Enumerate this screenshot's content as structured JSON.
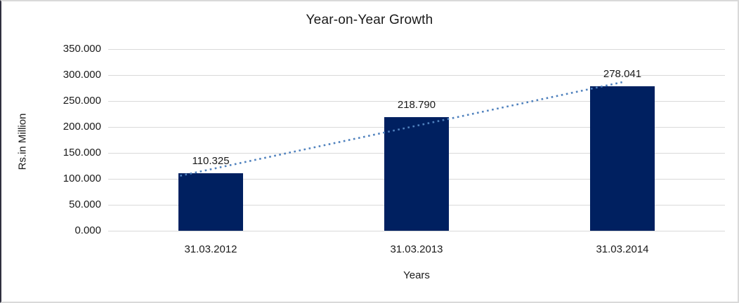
{
  "chart_data": {
    "type": "bar",
    "title": "Year-on-Year Growth",
    "categories": [
      "31.03.2012",
      "31.03.2013",
      "31.03.2014"
    ],
    "series": [
      {
        "name": "Rs.in Million",
        "values": [
          110.325,
          218.79,
          278.041
        ]
      }
    ],
    "data_labels": [
      "110.325",
      "218.790",
      "278.041"
    ],
    "xlabel": "Years",
    "ylabel": "Rs.in Million",
    "ylim": [
      0,
      350
    ],
    "ytick_step": 50,
    "ytick_labels": [
      "0.000",
      "50.000",
      "100.000",
      "150.000",
      "200.000",
      "250.000",
      "300.000",
      "350.000"
    ],
    "grid": true,
    "legend": "none",
    "trendline": {
      "type": "linear",
      "style": "dotted"
    },
    "colors": {
      "bar": "#002060",
      "trendline": "#4f81bd",
      "gridline": "#d9d9d9",
      "frame_border": "#d9d9d9",
      "frame_border_left": "#30303f",
      "text": "#1a1a1a"
    }
  }
}
